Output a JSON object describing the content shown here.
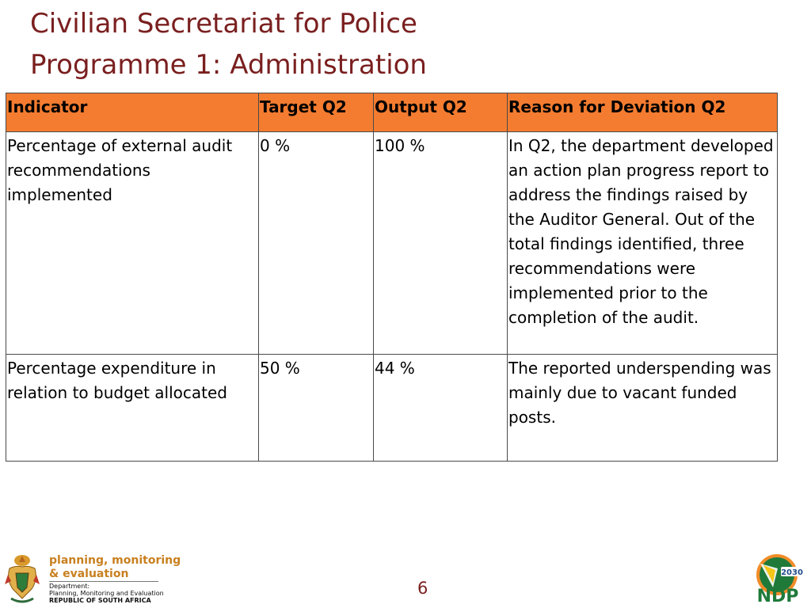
{
  "slide": {
    "title_line1": "Civilian Secretariat for Police",
    "title_line2": "Programme 1: Administration",
    "page_number": "6"
  },
  "table": {
    "headers": [
      "Indicator",
      "Target Q2",
      "Output Q2",
      "Reason for Deviation Q2"
    ],
    "rows": [
      {
        "indicator": "Percentage of external audit recommendations implemented",
        "target": "0 %",
        "output": "100 %",
        "reason": "In Q2, the department developed an action plan progress report to address the findings raised by the Auditor General. Out of the total findings identified, three recommendations were implemented prior to the completion of the audit."
      },
      {
        "indicator": "Percentage expenditure in relation to budget allocated",
        "target": "50 %",
        "output": "44 %",
        "reason": "The reported underspending was mainly due to vacant funded posts."
      }
    ]
  },
  "footer": {
    "dpme_line1": "planning, monitoring",
    "dpme_line2": "& evaluation",
    "dept_line1": "Department:",
    "dept_line2": "Planning, Monitoring and Evaluation",
    "dept_line3": "REPUBLIC OF SOUTH AFRICA",
    "ndp_year": "2030",
    "ndp_text": "NDP"
  },
  "colors": {
    "title": "#7a1f1f",
    "header_fill": "#f47c30",
    "dpme_brand": "#c8801f",
    "ndp_green": "#1f7a3a",
    "ndp_orange": "#f28c28"
  }
}
